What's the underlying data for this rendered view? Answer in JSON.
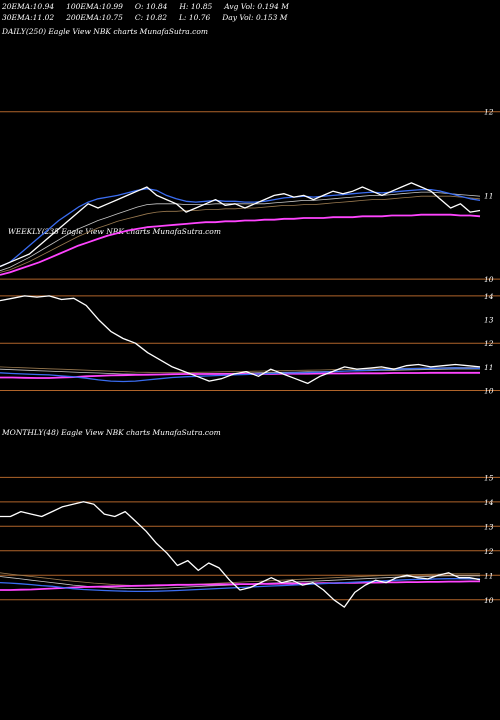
{
  "header": {
    "row1": [
      {
        "label": "20EMA:",
        "value": "10.94"
      },
      {
        "label": "100EMA:",
        "value": "10.99"
      },
      {
        "label": "O:",
        "value": "10.84"
      },
      {
        "label": "H:",
        "value": "10.85"
      },
      {
        "label": "Avg Vol:",
        "value": "0.194  M"
      }
    ],
    "row2": [
      {
        "label": "30EMA:",
        "value": "11.02"
      },
      {
        "label": "200EMA:",
        "value": "10.75"
      },
      {
        "label": "C:",
        "value": "10.82"
      },
      {
        "label": "L:",
        "value": "10.76"
      },
      {
        "label": "Day Vol:",
        "value": "0.153  M"
      }
    ]
  },
  "panels": [
    {
      "id": "daily",
      "label": "DAILY(250) Eagle  View  NBK charts MunafaSutra.com"
    },
    {
      "id": "weekly",
      "label": "WEEKLY(235  Eagle  View  NBK charts MunafaSutra.com"
    },
    {
      "id": "monthly",
      "label": "MONTHLY(48) Eagle  View  NBK charts MunafaSutra.com"
    }
  ],
  "colors": {
    "background": "#000000",
    "price": "#ffffff",
    "ema_fast": "#3a6cf0",
    "ema_slow": "#ff44ff",
    "ema_mid1": "#c8c8c8",
    "ema_mid2": "#9a7a50",
    "level_line": "#b0642a"
  },
  "chart_data": [
    {
      "type": "line",
      "panel": "daily",
      "y_ticks": [
        12,
        11,
        10
      ],
      "ylim": [
        9.75,
        12.2
      ],
      "h_levels": [
        12,
        10
      ],
      "series": [
        {
          "role": "price",
          "values": [
            10.15,
            10.2,
            10.25,
            10.3,
            10.4,
            10.5,
            10.6,
            10.7,
            10.8,
            10.9,
            10.85,
            10.9,
            10.95,
            11.0,
            11.05,
            11.1,
            11.0,
            10.95,
            10.9,
            10.8,
            10.85,
            10.9,
            10.95,
            10.88,
            10.9,
            10.85,
            10.9,
            10.95,
            11.0,
            11.02,
            10.98,
            11.0,
            10.95,
            11.0,
            11.05,
            11.02,
            11.05,
            11.1,
            11.05,
            11.0,
            11.05,
            11.1,
            11.15,
            11.1,
            11.05,
            10.95,
            10.85,
            10.9,
            10.8,
            10.82
          ]
        },
        {
          "role": "ema_fast",
          "values": [
            10.15,
            10.2,
            10.3,
            10.4,
            10.5,
            10.6,
            10.7,
            10.78,
            10.86,
            10.92,
            10.96,
            10.98,
            11.0,
            11.03,
            11.06,
            11.08,
            11.06,
            11.0,
            10.96,
            10.93,
            10.92,
            10.93,
            10.94,
            10.93,
            10.93,
            10.92,
            10.92,
            10.93,
            10.95,
            10.97,
            10.98,
            10.99,
            10.98,
            10.99,
            11.0,
            11.01,
            11.02,
            11.03,
            11.04,
            11.03,
            11.04,
            11.05,
            11.06,
            11.07,
            11.07,
            11.05,
            11.02,
            10.99,
            10.96,
            10.94
          ]
        },
        {
          "role": "ema_slow",
          "values": [
            10.05,
            10.08,
            10.12,
            10.16,
            10.2,
            10.25,
            10.3,
            10.35,
            10.4,
            10.44,
            10.48,
            10.52,
            10.55,
            10.58,
            10.6,
            10.62,
            10.63,
            10.64,
            10.65,
            10.66,
            10.67,
            10.68,
            10.68,
            10.69,
            10.69,
            10.7,
            10.7,
            10.71,
            10.71,
            10.72,
            10.72,
            10.73,
            10.73,
            10.73,
            10.74,
            10.74,
            10.74,
            10.75,
            10.75,
            10.75,
            10.76,
            10.76,
            10.76,
            10.77,
            10.77,
            10.77,
            10.77,
            10.76,
            10.76,
            10.75
          ]
        },
        {
          "role": "ema_mid1",
          "values": [
            10.1,
            10.14,
            10.2,
            10.26,
            10.33,
            10.4,
            10.47,
            10.54,
            10.6,
            10.65,
            10.7,
            10.74,
            10.78,
            10.82,
            10.86,
            10.89,
            10.9,
            10.9,
            10.9,
            10.89,
            10.89,
            10.89,
            10.9,
            10.9,
            10.9,
            10.9,
            10.9,
            10.9,
            10.91,
            10.92,
            10.93,
            10.94,
            10.94,
            10.95,
            10.96,
            10.97,
            10.98,
            10.99,
            11.0,
            11.0,
            11.01,
            11.02,
            11.03,
            11.04,
            11.04,
            11.03,
            11.02,
            11.01,
            11.0,
            10.99
          ]
        },
        {
          "role": "ema_mid2",
          "values": [
            10.08,
            10.11,
            10.16,
            10.21,
            10.27,
            10.33,
            10.39,
            10.45,
            10.51,
            10.56,
            10.61,
            10.65,
            10.69,
            10.72,
            10.75,
            10.78,
            10.8,
            10.81,
            10.81,
            10.82,
            10.82,
            10.83,
            10.83,
            10.84,
            10.84,
            10.85,
            10.85,
            10.86,
            10.87,
            10.88,
            10.88,
            10.89,
            10.89,
            10.9,
            10.91,
            10.92,
            10.93,
            10.94,
            10.95,
            10.95,
            10.96,
            10.97,
            10.98,
            10.99,
            10.99,
            10.99,
            10.99,
            10.98,
            10.97,
            10.96
          ]
        }
      ]
    },
    {
      "type": "line",
      "panel": "weekly",
      "y_ticks": [
        14,
        13,
        12,
        11,
        10
      ],
      "ylim": [
        9.6,
        14.25
      ],
      "h_levels": [
        14,
        12,
        10
      ],
      "series": [
        {
          "role": "price",
          "values": [
            13.8,
            13.9,
            14.0,
            13.95,
            14.0,
            13.85,
            13.9,
            13.6,
            13.0,
            12.5,
            12.2,
            12.0,
            11.6,
            11.3,
            11.0,
            10.8,
            10.6,
            10.4,
            10.5,
            10.7,
            10.8,
            10.6,
            10.9,
            10.7,
            10.5,
            10.3,
            10.6,
            10.8,
            11.0,
            10.9,
            10.95,
            11.0,
            10.9,
            11.05,
            11.1,
            11.0,
            11.05,
            11.1,
            11.05,
            11.0
          ]
        },
        {
          "role": "ema_fast",
          "values": [
            10.75,
            10.72,
            10.7,
            10.68,
            10.66,
            10.62,
            10.58,
            10.52,
            10.45,
            10.4,
            10.38,
            10.4,
            10.45,
            10.5,
            10.55,
            10.58,
            10.6,
            10.62,
            10.64,
            10.66,
            10.68,
            10.7,
            10.72,
            10.74,
            10.75,
            10.76,
            10.78,
            10.8,
            10.82,
            10.84,
            10.86,
            10.88,
            10.9,
            10.92,
            10.93,
            10.94,
            10.95,
            10.96,
            10.95,
            10.94
          ]
        },
        {
          "role": "ema_slow",
          "values": [
            10.55,
            10.55,
            10.54,
            10.53,
            10.53,
            10.55,
            10.57,
            10.6,
            10.62,
            10.64,
            10.65,
            10.66,
            10.67,
            10.68,
            10.69,
            10.7,
            10.7,
            10.7,
            10.7,
            10.7,
            10.7,
            10.7,
            10.7,
            10.71,
            10.71,
            10.71,
            10.72,
            10.72,
            10.72,
            10.73,
            10.73,
            10.73,
            10.74,
            10.74,
            10.74,
            10.75,
            10.75,
            10.75,
            10.75,
            10.75
          ]
        },
        {
          "role": "ema_mid1",
          "values": [
            10.9,
            10.88,
            10.86,
            10.84,
            10.82,
            10.8,
            10.78,
            10.76,
            10.74,
            10.72,
            10.7,
            10.69,
            10.68,
            10.68,
            10.68,
            10.69,
            10.7,
            10.71,
            10.72,
            10.73,
            10.74,
            10.75,
            10.76,
            10.77,
            10.78,
            10.79,
            10.8,
            10.81,
            10.82,
            10.83,
            10.84,
            10.85,
            10.86,
            10.87,
            10.88,
            10.89,
            10.9,
            10.91,
            10.91,
            10.91
          ]
        },
        {
          "role": "ema_mid2",
          "values": [
            11.0,
            10.98,
            10.96,
            10.94,
            10.92,
            10.9,
            10.88,
            10.86,
            10.84,
            10.82,
            10.8,
            10.78,
            10.77,
            10.76,
            10.76,
            10.76,
            10.77,
            10.78,
            10.79,
            10.8,
            10.81,
            10.82,
            10.83,
            10.84,
            10.85,
            10.86,
            10.87,
            10.88,
            10.89,
            10.9,
            10.91,
            10.92,
            10.93,
            10.94,
            10.95,
            10.96,
            10.97,
            10.98,
            10.98,
            10.98
          ]
        }
      ]
    },
    {
      "type": "line",
      "panel": "monthly",
      "y_ticks": [
        15,
        14,
        13,
        12,
        11,
        10
      ],
      "ylim": [
        9.5,
        15.3
      ],
      "h_levels": [
        15,
        14,
        13,
        12,
        11,
        10
      ],
      "series": [
        {
          "role": "price",
          "values": [
            13.4,
            13.4,
            13.6,
            13.5,
            13.4,
            13.6,
            13.8,
            13.9,
            14.0,
            13.9,
            13.5,
            13.4,
            13.6,
            13.2,
            12.8,
            12.3,
            11.9,
            11.4,
            11.6,
            11.2,
            11.5,
            11.3,
            10.8,
            10.4,
            10.5,
            10.7,
            10.9,
            10.7,
            10.8,
            10.6,
            10.7,
            10.4,
            10.0,
            9.7,
            10.3,
            10.6,
            10.8,
            10.7,
            10.9,
            11.0,
            10.9,
            10.85,
            11.0,
            11.1,
            10.9,
            10.9,
            10.82
          ]
        },
        {
          "role": "ema_fast",
          "values": [
            10.7,
            10.68,
            10.65,
            10.62,
            10.58,
            10.55,
            10.5,
            10.45,
            10.42,
            10.4,
            10.38,
            10.36,
            10.35,
            10.34,
            10.34,
            10.35,
            10.36,
            10.38,
            10.4,
            10.42,
            10.44,
            10.46,
            10.48,
            10.5,
            10.52,
            10.54,
            10.56,
            10.58,
            10.6,
            10.62,
            10.64,
            10.66,
            10.68,
            10.7,
            10.72,
            10.74,
            10.76,
            10.78,
            10.8,
            10.82,
            10.83,
            10.84,
            10.85,
            10.86,
            10.86,
            10.85,
            10.85
          ]
        },
        {
          "role": "ema_slow",
          "values": [
            10.4,
            10.4,
            10.41,
            10.42,
            10.44,
            10.46,
            10.48,
            10.5,
            10.52,
            10.53,
            10.54,
            10.55,
            10.56,
            10.57,
            10.58,
            10.59,
            10.6,
            10.61,
            10.61,
            10.62,
            10.62,
            10.63,
            10.63,
            10.64,
            10.64,
            10.65,
            10.65,
            10.66,
            10.66,
            10.67,
            10.67,
            10.68,
            10.68,
            10.69,
            10.69,
            10.7,
            10.7,
            10.71,
            10.71,
            10.72,
            10.72,
            10.73,
            10.73,
            10.74,
            10.74,
            10.75,
            10.75
          ]
        },
        {
          "role": "ema_mid1",
          "values": [
            10.95,
            10.9,
            10.85,
            10.8,
            10.75,
            10.7,
            10.65,
            10.6,
            10.56,
            10.52,
            10.5,
            10.48,
            10.47,
            10.46,
            10.46,
            10.47,
            10.48,
            10.5,
            10.52,
            10.54,
            10.56,
            10.58,
            10.6,
            10.62,
            10.64,
            10.66,
            10.68,
            10.7,
            10.72,
            10.74,
            10.76,
            10.78,
            10.8,
            10.82,
            10.84,
            10.86,
            10.88,
            10.9,
            10.92,
            10.94,
            10.95,
            10.96,
            10.97,
            10.98,
            10.98,
            10.98,
            10.98
          ]
        },
        {
          "role": "ema_mid2",
          "values": [
            11.1,
            11.05,
            11.0,
            10.95,
            10.9,
            10.85,
            10.8,
            10.76,
            10.72,
            10.68,
            10.65,
            10.62,
            10.6,
            10.58,
            10.57,
            10.57,
            10.58,
            10.6,
            10.62,
            10.64,
            10.66,
            10.68,
            10.7,
            10.72,
            10.74,
            10.76,
            10.78,
            10.8,
            10.82,
            10.84,
            10.86,
            10.88,
            10.9,
            10.92,
            10.94,
            10.96,
            10.98,
            11.0,
            11.01,
            11.02,
            11.03,
            11.04,
            11.05,
            11.06,
            11.06,
            11.06,
            11.06
          ]
        }
      ]
    }
  ]
}
